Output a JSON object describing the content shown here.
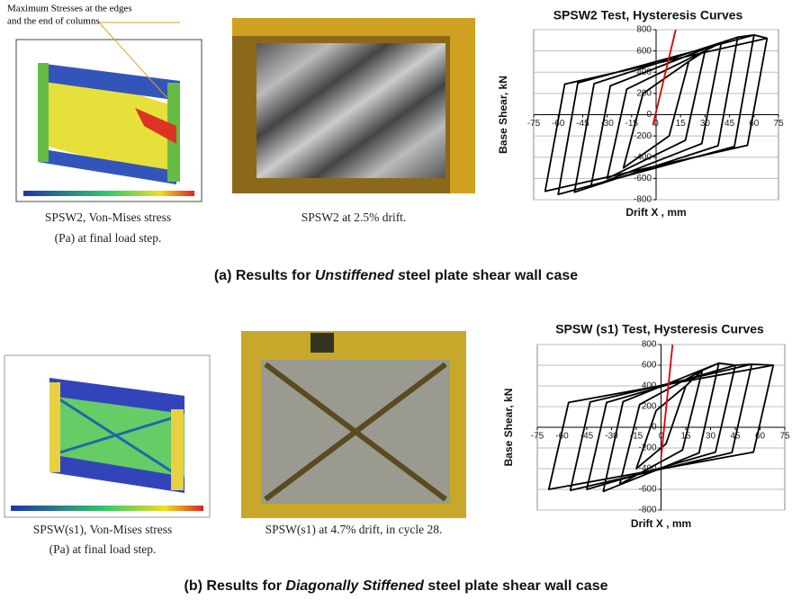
{
  "panels": [
    {
      "fea_note": [
        "Maximum Stresses at the edges",
        "and the end of columns"
      ],
      "fea_caption": [
        "SPSW2, Von-Mises stress",
        "(Pa) at final load step."
      ],
      "photo_caption": "SPSW2 at 2.5% drift.",
      "row_caption": [
        "(a)  Results for ",
        "Unstiffened s",
        "teel plate shear wall case"
      ]
    },
    {
      "fea_caption": [
        "SPSW(s1), Von-Mises stress",
        "(Pa) at final load step."
      ],
      "photo_caption": "SPSW(s1) at 4.7% drift, in cycle 28.",
      "row_caption": [
        "(b) Results for ",
        "Diagonally Stiffened",
        " steel plate shear wall case"
      ]
    }
  ],
  "chart_data": [
    {
      "type": "line",
      "title": "SPSW2 Test, Hysteresis Curves",
      "xlabel": "Drift X , mm",
      "ylabel": "Base Shear, kN",
      "xlim": [
        -75,
        75
      ],
      "xticks": [
        -75,
        -60,
        -45,
        -30,
        -15,
        0,
        15,
        30,
        45,
        60,
        75
      ],
      "ylim": [
        -800,
        800
      ],
      "yticks": [
        -800,
        -600,
        -400,
        -200,
        0,
        200,
        400,
        600,
        800
      ],
      "grid": true,
      "series": [
        {
          "color": "#000000",
          "x": [
            20,
            8,
            -20,
            -8,
            20,
            30,
            18,
            -30,
            -18,
            30,
            40,
            28,
            -40,
            -28,
            40,
            50,
            38,
            -50,
            -38,
            50,
            60,
            48,
            -60,
            -48,
            60,
            68,
            56,
            -68,
            -56,
            68
          ],
          "values": [
            500,
            -200,
            -500,
            200,
            500,
            600,
            -240,
            -600,
            240,
            600,
            680,
            -272,
            -680,
            272,
            680,
            730,
            -292,
            -730,
            292,
            730,
            750,
            -300,
            -750,
            300,
            750,
            720,
            -288,
            -720,
            288,
            720
          ]
        },
        {
          "color": "#e00000",
          "x": [
            -2,
            12
          ],
          "values": [
            -100,
            800
          ]
        }
      ]
    },
    {
      "type": "line",
      "title": "SPSW (s1) Test, Hysteresis Curves",
      "xlabel": "Drift X , mm",
      "ylabel": "Base Shear, kN",
      "xlim": [
        -75,
        75
      ],
      "xticks": [
        -75,
        -60,
        -45,
        -30,
        -15,
        0,
        15,
        30,
        45,
        60,
        75
      ],
      "ylim": [
        -800,
        800
      ],
      "yticks": [
        -800,
        -600,
        -400,
        -200,
        0,
        200,
        400,
        600,
        800
      ],
      "grid": true,
      "series": [
        {
          "color": "#000000",
          "x": [
            15,
            3,
            -15,
            -3,
            15,
            25,
            13,
            -25,
            -13,
            25,
            35,
            23,
            -35,
            -23,
            35,
            45,
            33,
            -45,
            -33,
            45,
            55,
            43,
            -55,
            -43,
            55,
            68,
            56,
            -68,
            -56,
            68
          ],
          "values": [
            400,
            -160,
            -400,
            160,
            400,
            550,
            -220,
            -550,
            220,
            550,
            620,
            -248,
            -620,
            248,
            620,
            600,
            -240,
            -600,
            240,
            600,
            610,
            -244,
            -610,
            244,
            610,
            600,
            -240,
            -600,
            240,
            600
          ]
        },
        {
          "color": "#e00000",
          "x": [
            0,
            7
          ],
          "values": [
            -300,
            800
          ]
        }
      ]
    }
  ]
}
